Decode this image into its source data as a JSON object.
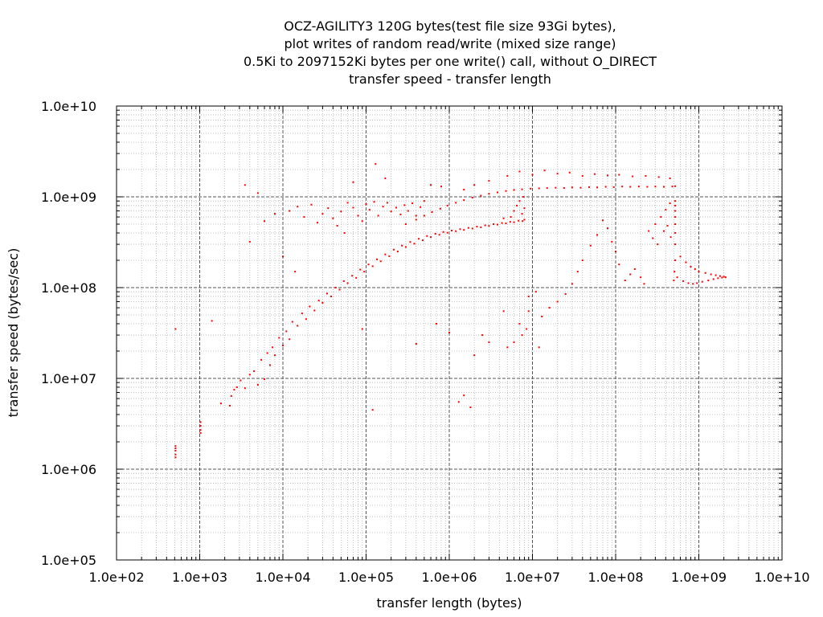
{
  "chart_data": {
    "type": "scatter",
    "title_lines": [
      "OCZ-AGILITY3 120G bytes(test file size 93Gi bytes),",
      "plot writes of random read/write (mixed size range)",
      "0.5Ki to 2097152Ki bytes per one write() call, without O_DIRECT",
      "transfer speed - transfer length"
    ],
    "xlabel": "transfer length (bytes)",
    "ylabel": "transfer speed (bytes/sec)",
    "x_scale": "log",
    "y_scale": "log",
    "xlim": [
      100,
      10000000000
    ],
    "ylim": [
      100000,
      10000000000
    ],
    "x_ticks": [
      "1.0e+02",
      "1.0e+03",
      "1.0e+04",
      "1.0e+05",
      "1.0e+06",
      "1.0e+07",
      "1.0e+08",
      "1.0e+09",
      "1.0e+10"
    ],
    "y_ticks": [
      "1.0e+05",
      "1.0e+06",
      "1.0e+07",
      "1.0e+08",
      "1.0e+09",
      "1.0e+10"
    ],
    "grid": "major and minor, dashed",
    "series_color": "#ff0000",
    "points": [
      [
        512,
        1800000
      ],
      [
        512,
        1600000
      ],
      [
        512,
        1450000
      ],
      [
        512,
        1350000
      ],
      [
        512,
        1700000
      ],
      [
        512,
        35000000
      ],
      [
        1024,
        3300000
      ],
      [
        1024,
        3000000
      ],
      [
        1024,
        2700000
      ],
      [
        1024,
        2500000
      ],
      [
        1400,
        43000000
      ],
      [
        1800,
        5300000
      ],
      [
        2300,
        5000000
      ],
      [
        2400,
        6400000
      ],
      [
        2600,
        7500000
      ],
      [
        2800,
        8000000
      ],
      [
        3100,
        9500000
      ],
      [
        3500,
        7800000
      ],
      [
        4000,
        11000000
      ],
      [
        4500,
        12000000
      ],
      [
        5000,
        8500000
      ],
      [
        5500,
        16000000
      ],
      [
        6000,
        9800000
      ],
      [
        6500,
        19000000
      ],
      [
        7000,
        14000000
      ],
      [
        7500,
        22000000
      ],
      [
        8000,
        18000000
      ],
      [
        9000,
        28000000
      ],
      [
        10000,
        23000000
      ],
      [
        11000,
        33000000
      ],
      [
        12000,
        27000000
      ],
      [
        13000,
        42000000
      ],
      [
        15000,
        38000000
      ],
      [
        17000,
        52000000
      ],
      [
        19000,
        45000000
      ],
      [
        21000,
        62000000
      ],
      [
        24000,
        56000000
      ],
      [
        27000,
        72000000
      ],
      [
        30000,
        68000000
      ],
      [
        34000,
        86000000
      ],
      [
        38000,
        80000000
      ],
      [
        43000,
        100000000
      ],
      [
        48000,
        95000000
      ],
      [
        54000,
        118000000
      ],
      [
        60000,
        112000000
      ],
      [
        68000,
        135000000
      ],
      [
        76000,
        128000000
      ],
      [
        85000,
        158000000
      ],
      [
        95000,
        150000000
      ],
      [
        107000,
        180000000
      ],
      [
        120000,
        172000000
      ],
      [
        135000,
        205000000
      ],
      [
        150000,
        195000000
      ],
      [
        170000,
        232000000
      ],
      [
        190000,
        222000000
      ],
      [
        215000,
        262000000
      ],
      [
        240000,
        250000000
      ],
      [
        270000,
        290000000
      ],
      [
        300000,
        280000000
      ],
      [
        340000,
        318000000
      ],
      [
        380000,
        305000000
      ],
      [
        430000,
        345000000
      ],
      [
        480000,
        332000000
      ],
      [
        540000,
        370000000
      ],
      [
        600000,
        360000000
      ],
      [
        680000,
        392000000
      ],
      [
        760000,
        382000000
      ],
      [
        850000,
        410000000
      ],
      [
        950000,
        402000000
      ],
      [
        1070000,
        425000000
      ],
      [
        1200000,
        418000000
      ],
      [
        1350000,
        440000000
      ],
      [
        1500000,
        432000000
      ],
      [
        1700000,
        455000000
      ],
      [
        1900000,
        448000000
      ],
      [
        2150000,
        470000000
      ],
      [
        2400000,
        462000000
      ],
      [
        2700000,
        485000000
      ],
      [
        3000000,
        478000000
      ],
      [
        3400000,
        500000000
      ],
      [
        3800000,
        495000000
      ],
      [
        4300000,
        515000000
      ],
      [
        4800000,
        510000000
      ],
      [
        5400000,
        530000000
      ],
      [
        6000000,
        525000000
      ],
      [
        6800000,
        545000000
      ],
      [
        7600000,
        540000000
      ],
      [
        8000000,
        560000000
      ],
      [
        300000,
        500000000
      ],
      [
        400000,
        560000000
      ],
      [
        500000,
        620000000
      ],
      [
        620000,
        680000000
      ],
      [
        780000,
        740000000
      ],
      [
        950000,
        800000000
      ],
      [
        1200000,
        860000000
      ],
      [
        1500000,
        920000000
      ],
      [
        1900000,
        980000000
      ],
      [
        2400000,
        1030000000
      ],
      [
        3000000,
        1080000000
      ],
      [
        3800000,
        1120000000
      ],
      [
        4800000,
        1160000000
      ],
      [
        6000000,
        1190000000
      ],
      [
        7500000,
        1210000000
      ],
      [
        9500000,
        1230000000
      ],
      [
        12000000,
        1240000000
      ],
      [
        15000000,
        1250000000
      ],
      [
        19000000,
        1260000000
      ],
      [
        24000000,
        1250000000
      ],
      [
        30000000,
        1270000000
      ],
      [
        38000000,
        1260000000
      ],
      [
        48000000,
        1280000000
      ],
      [
        60000000,
        1270000000
      ],
      [
        76000000,
        1290000000
      ],
      [
        95000000,
        1280000000
      ],
      [
        120000000,
        1300000000
      ],
      [
        150000000,
        1290000000
      ],
      [
        190000000,
        1300000000
      ],
      [
        240000000,
        1290000000
      ],
      [
        300000000,
        1300000000
      ],
      [
        380000000,
        1290000000
      ],
      [
        480000000,
        1300000000
      ],
      [
        520000000,
        1310000000
      ],
      [
        5000000,
        1700000000
      ],
      [
        7000000,
        1900000000
      ],
      [
        10000000,
        1750000000
      ],
      [
        14000000,
        1950000000
      ],
      [
        20000000,
        1800000000
      ],
      [
        28000000,
        1850000000
      ],
      [
        40000000,
        1700000000
      ],
      [
        56000000,
        1780000000
      ],
      [
        80000000,
        1720000000
      ],
      [
        110000000,
        1750000000
      ],
      [
        160000000,
        1680000000
      ],
      [
        230000000,
        1700000000
      ],
      [
        330000000,
        1650000000
      ],
      [
        450000000,
        1600000000
      ],
      [
        3000000,
        1500000000
      ],
      [
        2000000,
        1350000000
      ],
      [
        1500000,
        1200000000
      ],
      [
        6000000,
        700000000
      ],
      [
        6500000,
        800000000
      ],
      [
        7000000,
        900000000
      ],
      [
        7500000,
        650000000
      ],
      [
        8000000,
        750000000
      ],
      [
        5500000,
        600000000
      ],
      [
        4500000,
        580000000
      ],
      [
        7800000,
        1000000000
      ],
      [
        520000000,
        900000000
      ],
      [
        520000000,
        800000000
      ],
      [
        520000000,
        700000000
      ],
      [
        520000000,
        600000000
      ],
      [
        520000000,
        500000000
      ],
      [
        520000000,
        400000000
      ],
      [
        520000000,
        300000000
      ],
      [
        520000000,
        200000000
      ],
      [
        510000000,
        150000000
      ],
      [
        500000000,
        120000000
      ],
      [
        450000000,
        850000000
      ],
      [
        400000000,
        720000000
      ],
      [
        350000000,
        600000000
      ],
      [
        420000000,
        480000000
      ],
      [
        380000000,
        420000000
      ],
      [
        460000000,
        360000000
      ],
      [
        300000000,
        500000000
      ],
      [
        250000000,
        420000000
      ],
      [
        320000000,
        300000000
      ],
      [
        280000000,
        350000000
      ],
      [
        600000000,
        220000000
      ],
      [
        700000000,
        190000000
      ],
      [
        800000000,
        170000000
      ],
      [
        900000000,
        160000000
      ],
      [
        1000000000,
        150000000
      ],
      [
        1200000000,
        145000000
      ],
      [
        1400000000,
        140000000
      ],
      [
        1600000000,
        137000000
      ],
      [
        1800000000,
        134000000
      ],
      [
        2000000000,
        132000000
      ],
      [
        2100000000,
        130000000
      ],
      [
        550000000,
        130000000
      ],
      [
        650000000,
        118000000
      ],
      [
        750000000,
        112000000
      ],
      [
        850000000,
        110000000
      ],
      [
        950000000,
        112000000
      ],
      [
        1100000000,
        116000000
      ],
      [
        1300000000,
        120000000
      ],
      [
        1500000000,
        124000000
      ],
      [
        1700000000,
        127000000
      ],
      [
        1900000000,
        129000000
      ],
      [
        150000000,
        140000000
      ],
      [
        130000000,
        120000000
      ],
      [
        170000000,
        160000000
      ],
      [
        200000000,
        130000000
      ],
      [
        220000000,
        110000000
      ],
      [
        110000000,
        180000000
      ],
      [
        100000000,
        250000000
      ],
      [
        90000000,
        320000000
      ],
      [
        80000000,
        450000000
      ],
      [
        70000000,
        550000000
      ],
      [
        60000000,
        380000000
      ],
      [
        50000000,
        290000000
      ],
      [
        40000000,
        200000000
      ],
      [
        35000000,
        150000000
      ],
      [
        30000000,
        110000000
      ],
      [
        25000000,
        85000000
      ],
      [
        20000000,
        70000000
      ],
      [
        16000000,
        60000000
      ],
      [
        13000000,
        48000000
      ],
      [
        11000000,
        90000000
      ],
      [
        9000000,
        80000000
      ],
      [
        8500000,
        35000000
      ],
      [
        7500000,
        30000000
      ],
      [
        6000000,
        25000000
      ],
      [
        5000000,
        22000000
      ],
      [
        12000000,
        22000000
      ],
      [
        9000000,
        55000000
      ],
      [
        7000000,
        40000000
      ],
      [
        4500000,
        55000000
      ],
      [
        2500000,
        30000000
      ],
      [
        1500000,
        6500000
      ],
      [
        1300000,
        5500000
      ],
      [
        1800000,
        4800000
      ],
      [
        120000,
        4500000
      ],
      [
        90000,
        35000000
      ],
      [
        400000,
        24000000
      ],
      [
        700000,
        40000000
      ],
      [
        1000000,
        32000000
      ],
      [
        2000000,
        18000000
      ],
      [
        3000000,
        25000000
      ],
      [
        12000,
        700000000
      ],
      [
        15000,
        780000000
      ],
      [
        18000,
        600000000
      ],
      [
        22000,
        820000000
      ],
      [
        26000,
        520000000
      ],
      [
        30000,
        650000000
      ],
      [
        35000,
        750000000
      ],
      [
        40000,
        580000000
      ],
      [
        45000,
        480000000
      ],
      [
        50000,
        690000000
      ],
      [
        55000,
        400000000
      ],
      [
        60000,
        860000000
      ],
      [
        70000,
        760000000
      ],
      [
        80000,
        620000000
      ],
      [
        90000,
        540000000
      ],
      [
        100000,
        830000000
      ],
      [
        110000,
        720000000
      ],
      [
        125000,
        880000000
      ],
      [
        140000,
        620000000
      ],
      [
        160000,
        780000000
      ],
      [
        180000,
        860000000
      ],
      [
        200000,
        690000000
      ],
      [
        230000,
        760000000
      ],
      [
        260000,
        640000000
      ],
      [
        290000,
        810000000
      ],
      [
        320000,
        700000000
      ],
      [
        360000,
        850000000
      ],
      [
        400000,
        620000000
      ],
      [
        450000,
        770000000
      ],
      [
        500000,
        900000000
      ],
      [
        4000,
        320000000
      ],
      [
        6000,
        540000000
      ],
      [
        8000,
        650000000
      ],
      [
        10000,
        220000000
      ],
      [
        14000,
        150000000
      ],
      [
        3500,
        1350000000
      ],
      [
        5000,
        1100000000
      ],
      [
        70000,
        1450000000
      ],
      [
        170000,
        1600000000
      ],
      [
        600000,
        1350000000
      ],
      [
        800000,
        1300000000
      ],
      [
        130000,
        2300000000
      ]
    ]
  }
}
